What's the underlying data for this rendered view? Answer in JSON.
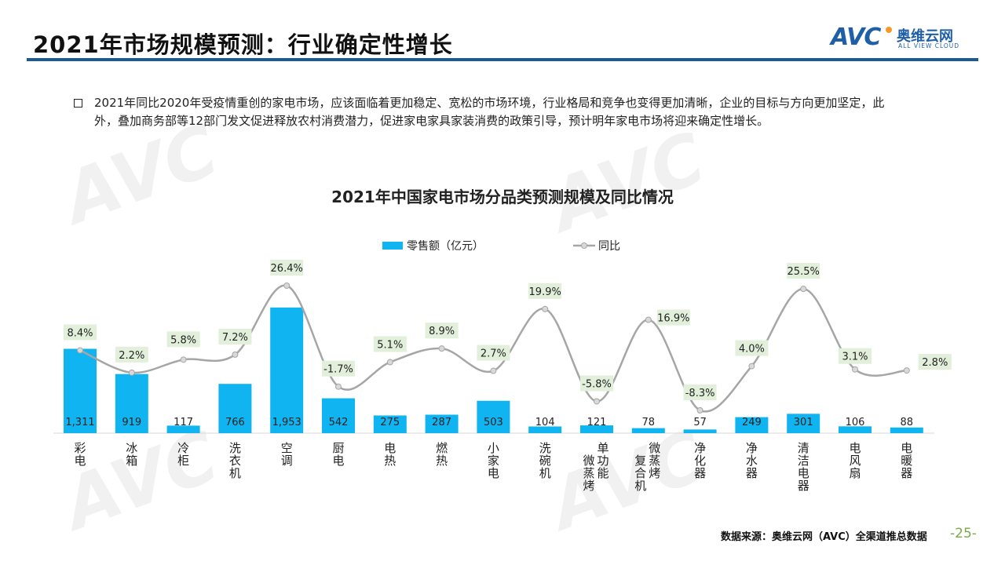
{
  "header": {
    "title": "2021年市场规模预测：行业确定性增长",
    "logo": {
      "mark": "AVC",
      "name_cn": "奥维云网",
      "name_en": "ALL VIEW CLOUD"
    }
  },
  "paragraph": "2021年同比2020年受疫情重创的家电市场，应该面临着更加稳定、宽松的市场环境，行业格局和竞争也变得更加清晰，企业的目标与方向更加坚定，此外，叠加商务部等12部门发文促进释放农村消费潜力，促进家电家具家装消费的政策引导，预计明年家电市场将迎来确定性增长。",
  "chart_data": {
    "type": "bar+line",
    "title": "2021年中国家电市场分品类预测规模及同比情况",
    "legend": [
      "零售额（亿元）",
      "同比"
    ],
    "legend_position": "top-center",
    "categories": [
      "彩电",
      "冰箱",
      "冷柜",
      "洗衣机",
      "空调",
      "厨电",
      "电热",
      "燃热",
      "小家电",
      "洗碗机",
      "单功能微蒸烤",
      "微蒸烤复合机",
      "净化器",
      "净水器",
      "清洁电器",
      "电风扇",
      "电暖器"
    ],
    "series": [
      {
        "name": "零售额（亿元）",
        "type": "bar",
        "values": [
          1311,
          919,
          117,
          766,
          1953,
          542,
          275,
          287,
          503,
          104,
          121,
          78,
          57,
          249,
          301,
          106,
          88
        ],
        "labels": [
          "1,311",
          "919",
          "117",
          "766",
          "1,953",
          "542",
          "275",
          "287",
          "503",
          "104",
          "121",
          "78",
          "57",
          "249",
          "301",
          "106",
          "88"
        ]
      },
      {
        "name": "同比",
        "type": "line",
        "values": [
          8.4,
          2.2,
          5.8,
          7.2,
          26.4,
          -1.7,
          5.1,
          8.9,
          2.7,
          19.9,
          -5.8,
          16.9,
          -8.3,
          4.0,
          25.5,
          3.1,
          2.8
        ],
        "labels": [
          "8.4%",
          "2.2%",
          "5.8%",
          "7.2%",
          "26.4%",
          "-1.7%",
          "5.1%",
          "8.9%",
          "2.7%",
          "19.9%",
          "-5.8%",
          "16.9%",
          "-8.3%",
          "4.0%",
          "25.5%",
          "3.1%",
          "2.8%"
        ]
      }
    ],
    "colors": {
      "bar": "#0fb4f0",
      "line": "#a6a6a6",
      "label_bg": "#e2efda"
    }
  },
  "footer": {
    "source": "数据来源：奥维云网（AVC）全渠道推总数据",
    "page": "-25-"
  }
}
